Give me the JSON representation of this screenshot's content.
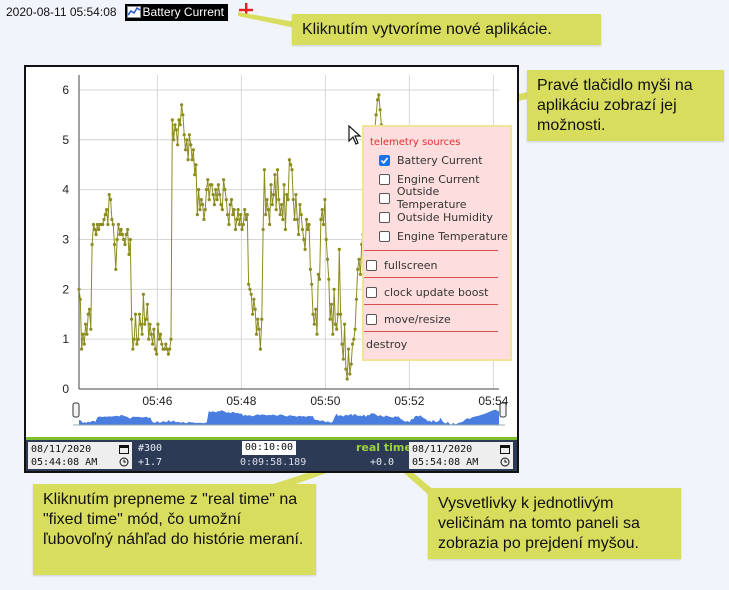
{
  "header": {
    "timestamp": "2020-08-11 05:54:08",
    "app_label": "Battery Current",
    "add_icon": "plus-icon"
  },
  "callouts": {
    "add": "Kliknutím vytvoríme nové aplikácie.",
    "right_click": "Pravé tlačidlo myši na aplikáciu zobrazí jej možnosti.",
    "real_time": "Kliknutím prepneme z \"real time\" na \"fixed time\" mód, čo umožní ľubovoľný náhľad do histórie meraní.",
    "legend": "Vysvetlivky k jednotlivým veličinám na tomto paneli sa zobrazia po prejdení myšou."
  },
  "context_menu": {
    "title": "telemetry sources",
    "sources": [
      {
        "label": "Battery Current",
        "checked": true
      },
      {
        "label": "Engine Current",
        "checked": false
      },
      {
        "label": "Outside Temperature",
        "checked": false
      },
      {
        "label": "Outside Humidity",
        "checked": false
      },
      {
        "label": "Engine Temperature",
        "checked": false
      }
    ],
    "options": [
      {
        "label": "fullscreen",
        "checked": false
      },
      {
        "label": "clock update boost",
        "checked": false
      },
      {
        "label": "move/resize",
        "checked": false
      }
    ],
    "destroy_label": "destroy"
  },
  "time_bar": {
    "start_date": "08/11/2020",
    "start_time": "05:44:08 AM",
    "point_count": "#300",
    "start_offset": "+1.7",
    "duration": "00:10:00",
    "elapsed": "0:09:58.189",
    "mode_label": "real time",
    "end_offset": "+0.0",
    "end_date": "08/11/2020",
    "end_time": "05:54:08 AM"
  },
  "colors": {
    "series": "#8c8c20",
    "navigator": "#4a7de0",
    "accent": "#7fbf2a",
    "callout": "#d9dd5e"
  },
  "chart_data": {
    "type": "line",
    "x_start": "05:44:08",
    "x_end": "05:54:08",
    "ylim": [
      0,
      6.3
    ],
    "y_ticks": [
      "0",
      "1",
      "2",
      "3",
      "4",
      "5",
      "6"
    ],
    "x_ticks": [
      "05:46",
      "05:48",
      "05:50",
      "05:52",
      "05:54"
    ],
    "series": [
      {
        "values": [
          2.0,
          1.8,
          0.8,
          1.1,
          0.9,
          1.3,
          1.1,
          1.5,
          1.6,
          1.2,
          2.9,
          3.3,
          3.2,
          3.1,
          3.3,
          3.2,
          3.3,
          3.3,
          3.3,
          3.4,
          3.5,
          3.6,
          3.3,
          3.9,
          3.8,
          3.4,
          3.3,
          2.9,
          2.4,
          3.0,
          3.3,
          3.1,
          3.2,
          3.1,
          3.0,
          2.9,
          3.1,
          3.2,
          2.7,
          3.0,
          1.4,
          0.8,
          1.0,
          1.5,
          0.9,
          1.0,
          1.5,
          1.3,
          1.1,
          1.9,
          1.3,
          1.4,
          1.7,
          1.0,
          1.3,
          1.1,
          0.9,
          1.2,
          0.8,
          0.7,
          1.3,
          1.0,
          1.1,
          0.9,
          0.8,
          0.8,
          0.9,
          0.8,
          0.7,
          0.8,
          1.0,
          5.4,
          5.0,
          5.3,
          5.2,
          4.9,
          5.4,
          5.3,
          5.7,
          5.5,
          5.1,
          4.8,
          5.0,
          4.6,
          5.1,
          4.9,
          4.6,
          4.8,
          4.3,
          4.5,
          3.5,
          4.0,
          3.6,
          3.8,
          3.7,
          3.4,
          3.6,
          4.0,
          4.2,
          3.8,
          4.1,
          4.1,
          3.9,
          3.7,
          4.0,
          3.8,
          4.1,
          3.9,
          3.7,
          3.6,
          4.2,
          4.0,
          3.8,
          3.5,
          3.3,
          3.7,
          3.8,
          3.5,
          3.6,
          3.2,
          3.4,
          3.6,
          3.3,
          3.5,
          3.2,
          3.3,
          3.6,
          3.4,
          3.5,
          2.1,
          2.0,
          1.9,
          1.5,
          1.8,
          1.6,
          1.1,
          1.4,
          1.2,
          0.8,
          1.4,
          3.2,
          4.4,
          3.5,
          3.8,
          3.6,
          3.3,
          4.1,
          3.7,
          3.9,
          4.3,
          3.6,
          4.4,
          3.8,
          3.5,
          3.7,
          3.4,
          4.1,
          3.2,
          3.9,
          3.8,
          4.6,
          4.5,
          4.4,
          3.8,
          3.4,
          3.9,
          3.4,
          3.1,
          3.7,
          3.5,
          3.2,
          3.0,
          2.8,
          3.4,
          3.2,
          3.3,
          2.4,
          2.1,
          1.5,
          1.3,
          1.6,
          1.1,
          2.3,
          2.2,
          3.4,
          3.6,
          3.3,
          3.8,
          3.0,
          2.6,
          2.2,
          1.4,
          1.7,
          1.1,
          2.0,
          1.3,
          1.2,
          1.5,
          2.8,
          1.5,
          0.9,
          0.6,
          1.3,
          0.4,
          0.2,
          0.8,
          0.3,
          0.5,
          0.9,
          1.0,
          1.2,
          1.8,
          2.4,
          2.6,
          2.3,
          2.9,
          3.1,
          3.3,
          3.5,
          3.6,
          3.9,
          4.1,
          4.4,
          4.6,
          4.9,
          5.2,
          5.5,
          5.8,
          5.9,
          5.6,
          5.3
        ]
      }
    ],
    "grid": true
  }
}
